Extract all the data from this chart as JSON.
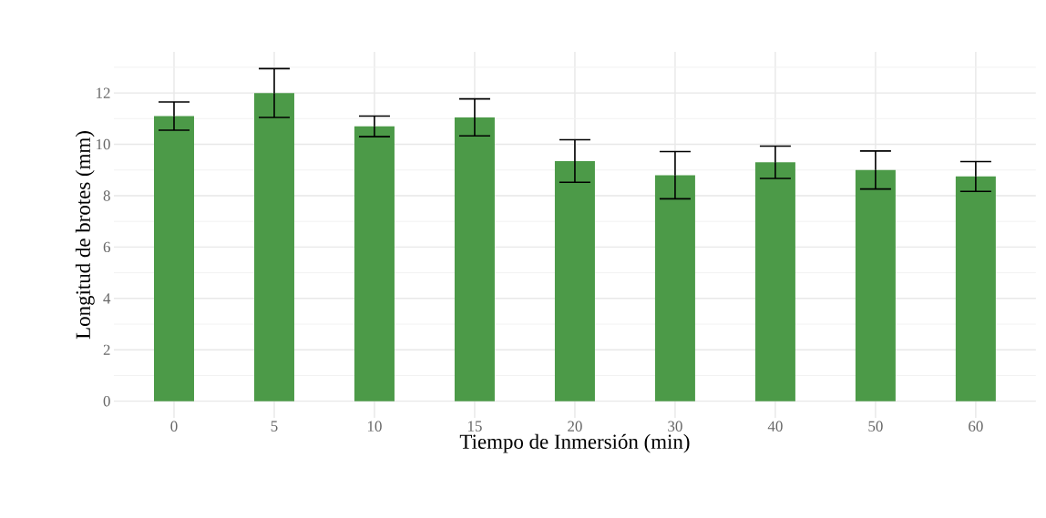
{
  "chart_data": {
    "type": "bar",
    "xlabel": "Tiempo de Inmersión (min)",
    "ylabel": "Longitud de brotes (mm)",
    "categories": [
      "0",
      "5",
      "10",
      "15",
      "20",
      "30",
      "40",
      "50",
      "60"
    ],
    "values": [
      11.1,
      12.0,
      10.7,
      11.05,
      9.35,
      8.8,
      9.3,
      9.0,
      8.75
    ],
    "errors": [
      0.55,
      0.95,
      0.4,
      0.72,
      0.83,
      0.92,
      0.63,
      0.74,
      0.58
    ],
    "color": "#4c9a48",
    "ylim": [
      -0.65,
      13.6
    ],
    "yticks": [
      0,
      2,
      4,
      6,
      8,
      10,
      12
    ],
    "grid": true
  }
}
